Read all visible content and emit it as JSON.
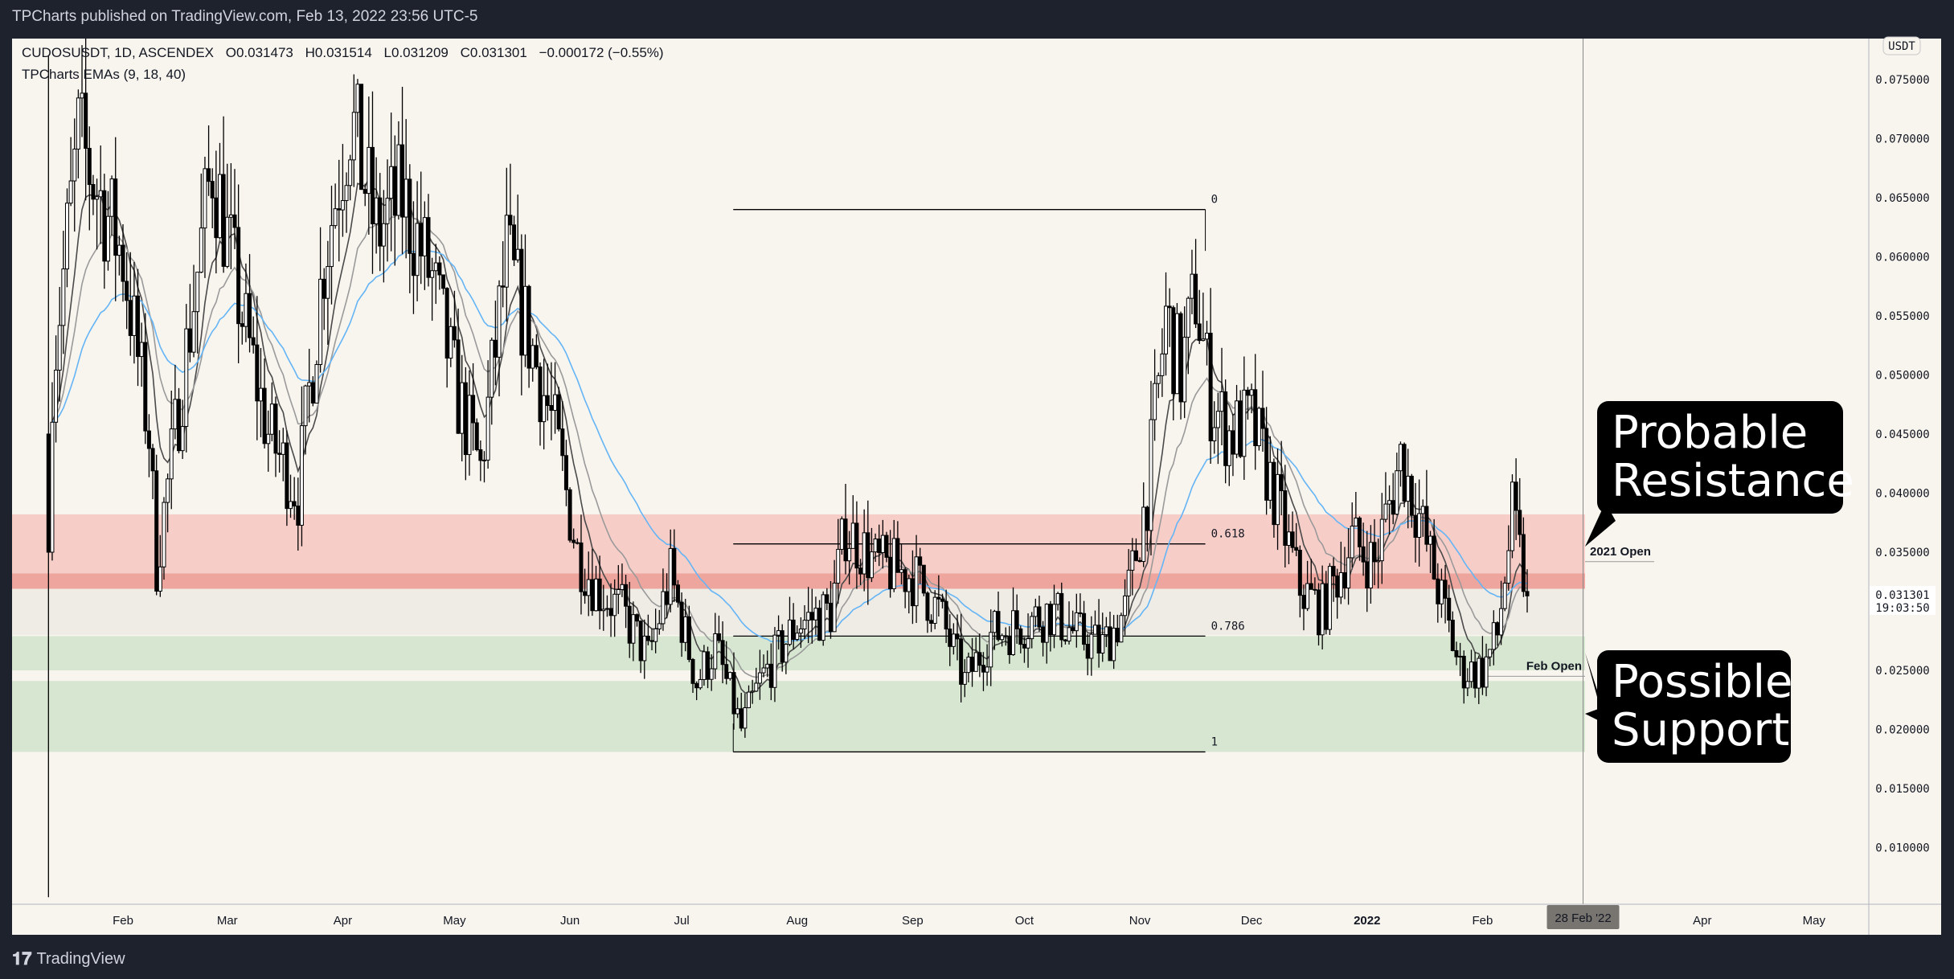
{
  "header": {
    "published": "TPCharts published on TradingView.com, Feb 13, 2022 23:56 UTC-5"
  },
  "legend": {
    "symbol": "CUDOSUSDT, 1D, ASCENDEX",
    "open": "O0.031473",
    "high": "H0.031514",
    "low": "L0.031209",
    "close": "C0.031301",
    "change": "−0.000172 (−0.55%)",
    "indicator": "TPCharts EMAs (9, 18, 40)"
  },
  "price_axis": {
    "currency": "USDT",
    "ticks": [
      "0.075000",
      "0.070000",
      "0.065000",
      "0.060000",
      "0.055000",
      "0.050000",
      "0.045000",
      "0.040000",
      "0.035000",
      "0.025000",
      "0.020000",
      "0.015000",
      "0.010000"
    ],
    "last_price": "0.031301",
    "countdown": "19:03:50"
  },
  "time_axis": {
    "ticks": [
      {
        "label": "Feb",
        "date": "2021-02-01"
      },
      {
        "label": "Mar",
        "date": "2021-03-01"
      },
      {
        "label": "Apr",
        "date": "2021-04-01"
      },
      {
        "label": "May",
        "date": "2021-05-01"
      },
      {
        "label": "Jun",
        "date": "2021-06-01"
      },
      {
        "label": "Jul",
        "date": "2021-07-01"
      },
      {
        "label": "Aug",
        "date": "2021-08-01"
      },
      {
        "label": "Sep",
        "date": "2021-09-01"
      },
      {
        "label": "Oct",
        "date": "2021-10-01"
      },
      {
        "label": "Nov",
        "date": "2021-11-01"
      },
      {
        "label": "Dec",
        "date": "2021-12-01"
      },
      {
        "label": "2022",
        "date": "2022-01-01"
      },
      {
        "label": "Feb",
        "date": "2022-02-01"
      },
      {
        "label": "Apr",
        "date": "2022-04-01"
      },
      {
        "label": "May",
        "date": "2022-05-01"
      }
    ],
    "cursor": {
      "label": "28 Feb '22",
      "date": "2022-02-28"
    }
  },
  "annotations": {
    "resistance_callout": "Probable Resistance",
    "support_callout": "Possible Support",
    "open_2021": {
      "label": "2021 Open",
      "price": 0.0342
    },
    "feb_open": {
      "label": "Feb Open",
      "price": 0.0245
    },
    "fib": {
      "start": "2021-07-17",
      "end": "2021-11-16",
      "levels": [
        {
          "label": "0",
          "price": 0.064
        },
        {
          "label": "0.618",
          "price": 0.0357
        },
        {
          "label": "0.786",
          "price": 0.0279
        },
        {
          "label": "1",
          "price": 0.0181
        }
      ]
    },
    "zones": [
      {
        "kind": "resistance",
        "top": 0.0382,
        "bottom": 0.0319,
        "color": "#f7cdc8"
      },
      {
        "kind": "resistance-core",
        "top": 0.0332,
        "bottom": 0.0319,
        "color": "#eea59e"
      },
      {
        "kind": "neutral",
        "top": 0.0319,
        "bottom": 0.028,
        "color": "#efebe5"
      },
      {
        "kind": "support",
        "top": 0.0279,
        "bottom": 0.025,
        "color": "#d7e6d1"
      },
      {
        "kind": "support",
        "top": 0.0241,
        "bottom": 0.0181,
        "color": "#d7e6d1"
      }
    ]
  },
  "footer": {
    "brand": "TradingView"
  },
  "chart_data": {
    "type": "candlestick",
    "symbol": "CUDOSUSDT",
    "interval": "1D",
    "ylim": [
      0.005,
      0.077
    ],
    "grid": false,
    "first_candle": {
      "date": "2021-01-12",
      "open": 0.045,
      "high": 0.077,
      "low": 0.0058,
      "close": 0.035
    },
    "close_path": [
      [
        "2021-01-13",
        0.05
      ],
      [
        "2021-01-20",
        0.07
      ],
      [
        "2021-02-01",
        0.06
      ],
      [
        "2021-02-08",
        0.045
      ],
      [
        "2021-02-10",
        0.034
      ],
      [
        "2021-02-15",
        0.045
      ],
      [
        "2021-02-25",
        0.068
      ],
      [
        "2021-03-05",
        0.055
      ],
      [
        "2021-03-12",
        0.045
      ],
      [
        "2021-03-20",
        0.04
      ],
      [
        "2021-03-27",
        0.06
      ],
      [
        "2021-04-03",
        0.072
      ],
      [
        "2021-04-10",
        0.062
      ],
      [
        "2021-04-17",
        0.065
      ],
      [
        "2021-04-25",
        0.058
      ],
      [
        "2021-05-02",
        0.048
      ],
      [
        "2021-05-08",
        0.042
      ],
      [
        "2021-05-15",
        0.06
      ],
      [
        "2021-05-22",
        0.052
      ],
      [
        "2021-05-28",
        0.045
      ],
      [
        "2021-06-03",
        0.035
      ],
      [
        "2021-06-08",
        0.032
      ],
      [
        "2021-06-15",
        0.03
      ],
      [
        "2021-06-22",
        0.026
      ],
      [
        "2021-06-28",
        0.033
      ],
      [
        "2021-07-05",
        0.024
      ],
      [
        "2021-07-10",
        0.027
      ],
      [
        "2021-07-17",
        0.02
      ],
      [
        "2021-07-22",
        0.024
      ],
      [
        "2021-08-01",
        0.029
      ],
      [
        "2021-08-10",
        0.03
      ],
      [
        "2021-08-14",
        0.037
      ],
      [
        "2021-08-22",
        0.034
      ],
      [
        "2021-09-01",
        0.033
      ],
      [
        "2021-09-08",
        0.03
      ],
      [
        "2021-09-15",
        0.024
      ],
      [
        "2021-09-22",
        0.028
      ],
      [
        "2021-10-01",
        0.029
      ],
      [
        "2021-10-08",
        0.03
      ],
      [
        "2021-10-15",
        0.028
      ],
      [
        "2021-10-22",
        0.027
      ],
      [
        "2021-10-28",
        0.03
      ],
      [
        "2021-11-03",
        0.04
      ],
      [
        "2021-11-08",
        0.055
      ],
      [
        "2021-11-12",
        0.05
      ],
      [
        "2021-11-16",
        0.057
      ],
      [
        "2021-11-20",
        0.048
      ],
      [
        "2021-11-25",
        0.045
      ],
      [
        "2021-12-01",
        0.046
      ],
      [
        "2021-12-07",
        0.04
      ],
      [
        "2021-12-14",
        0.032
      ],
      [
        "2021-12-20",
        0.03
      ],
      [
        "2021-12-28",
        0.036
      ],
      [
        "2022-01-03",
        0.034
      ],
      [
        "2022-01-10",
        0.043
      ],
      [
        "2022-01-15",
        0.038
      ],
      [
        "2022-01-20",
        0.032
      ],
      [
        "2022-01-26",
        0.025
      ],
      [
        "2022-02-01",
        0.025
      ],
      [
        "2022-02-05",
        0.028
      ],
      [
        "2022-02-09",
        0.038
      ],
      [
        "2022-02-13",
        0.031301
      ]
    ],
    "emas": [
      {
        "name": "9",
        "period": 9,
        "color": "#4a4a4a"
      },
      {
        "name": "18",
        "period": 18,
        "color": "#9a9a9a"
      },
      {
        "name": "40",
        "period": 40,
        "color": "#64b5f6"
      }
    ],
    "colors": {
      "up_body": "#ffffff",
      "down_body": "#000000",
      "wick": "#000000"
    }
  }
}
